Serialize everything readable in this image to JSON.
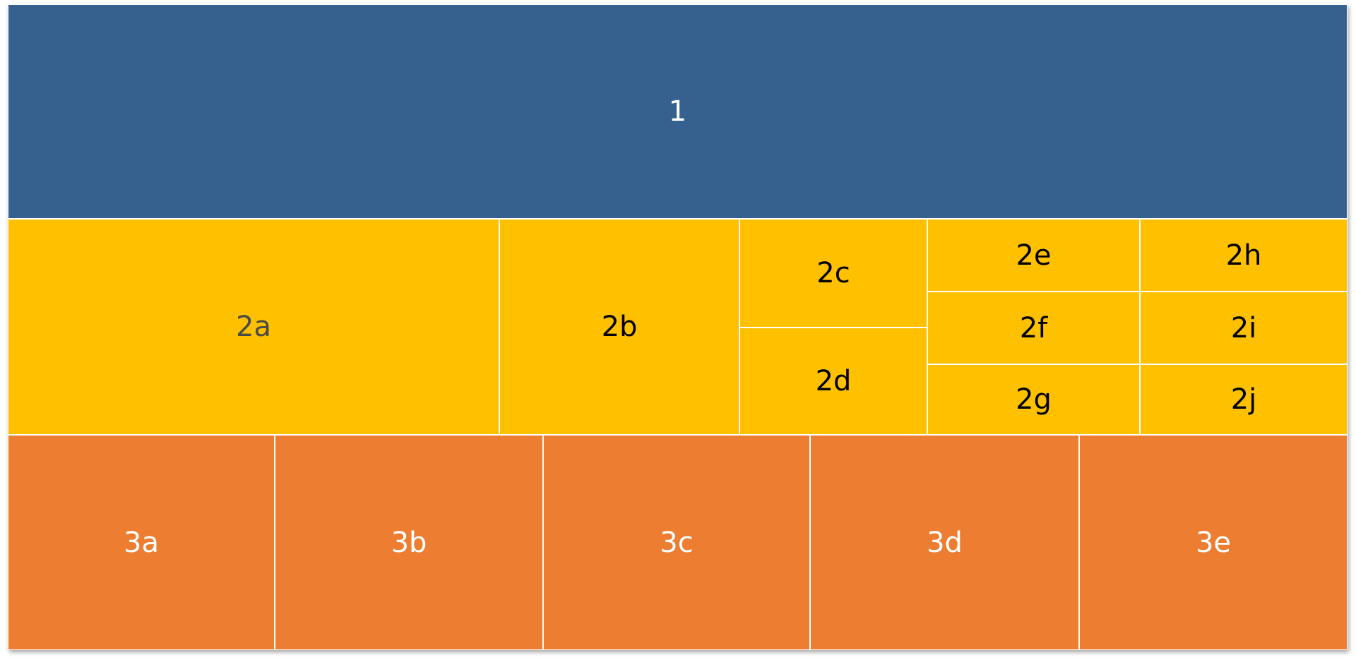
{
  "boxes": [
    {
      "label": "1"
    },
    {
      "label": "2a"
    },
    {
      "label": "2b"
    },
    {
      "label": "2c"
    },
    {
      "label": "2d"
    },
    {
      "label": "2e"
    },
    {
      "label": "2f"
    },
    {
      "label": "2g"
    },
    {
      "label": "2h"
    },
    {
      "label": "2i"
    },
    {
      "label": "2j"
    },
    {
      "label": "3a"
    },
    {
      "label": "3b"
    },
    {
      "label": "3c"
    },
    {
      "label": "3d"
    },
    {
      "label": "3e"
    }
  ]
}
